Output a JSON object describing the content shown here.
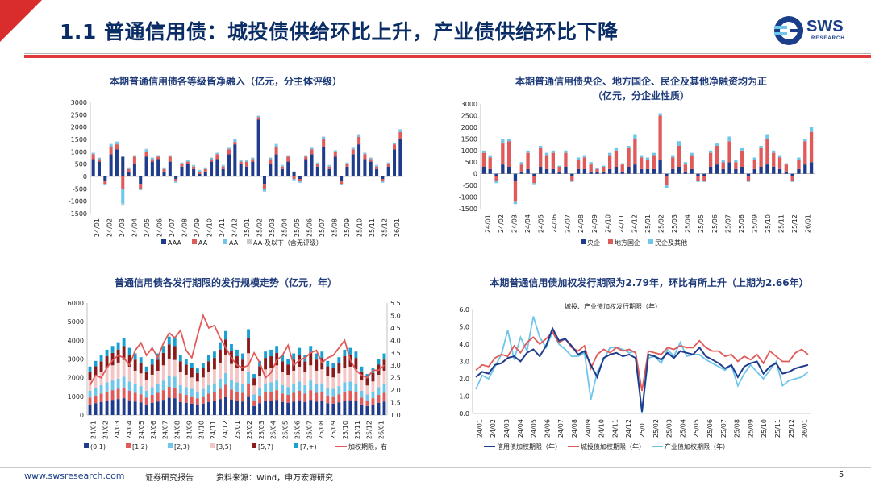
{
  "header": {
    "title": "1.1 普通信用债：城投债供给环比上升，产业债供给环比下降",
    "brand": "SWS",
    "brand_sub": "RESEARCH",
    "accent": "#d92c2c"
  },
  "footer": {
    "site": "www.swsresearch.com",
    "report": "证券研究报告",
    "source": "资料来源：Wind，申万宏源研究",
    "page": "5"
  },
  "chart_data": [
    {
      "type": "bar",
      "title": "本期普通信用债各等级皆净融入（亿元，分主体评级）",
      "yticks": [
        "3000",
        "2500",
        "2000",
        "1500",
        "1000",
        "500",
        "0",
        "-500",
        "-1000",
        "-1500"
      ],
      "ylim": [
        -1500,
        3000
      ],
      "xticks": [
        "24/01",
        "24/02",
        "24/03",
        "24/04",
        "24/05",
        "24/06",
        "24/07",
        "24/08",
        "24/09",
        "24/10",
        "24/11",
        "24/12",
        "25/01",
        "25/02",
        "25/03",
        "25/04",
        "25/05",
        "25/06",
        "25/07",
        "25/08",
        "25/09",
        "25/10",
        "25/11",
        "25/12",
        "26/01"
      ],
      "series": [
        {
          "name": "AAA",
          "color": "#1f3b8c"
        },
        {
          "name": "AA+",
          "color": "#e05a5a"
        },
        {
          "name": "AA",
          "color": "#6ec6ea"
        },
        {
          "name": "AA-及以下（含无评级）",
          "color": "#c9c9c9"
        }
      ],
      "values": {
        "AAA": [
          700,
          600,
          -200,
          900,
          1100,
          800,
          200,
          500,
          -300,
          800,
          600,
          700,
          200,
          600,
          -100,
          400,
          500,
          300,
          100,
          200,
          600,
          700,
          300,
          900,
          1300,
          500,
          400,
          600,
          2300,
          -300,
          500,
          900,
          300,
          600,
          200,
          -100,
          700,
          900,
          400,
          1200,
          300,
          800,
          -200,
          400,
          900,
          1300,
          700,
          600,
          300,
          -100,
          400,
          1100,
          1500
        ],
        "AA+": [
          200,
          100,
          -100,
          300,
          200,
          -500,
          100,
          300,
          -200,
          200,
          100,
          100,
          100,
          200,
          -100,
          100,
          100,
          100,
          100,
          100,
          100,
          200,
          100,
          200,
          100,
          100,
          200,
          100,
          100,
          -200,
          200,
          300,
          100,
          200,
          -100,
          -100,
          100,
          200,
          100,
          300,
          100,
          200,
          -100,
          100,
          200,
          300,
          200,
          100,
          100,
          -100,
          100,
          200,
          300
        ],
        "AA": [
          50,
          50,
          -50,
          100,
          100,
          -600,
          50,
          50,
          -50,
          100,
          50,
          50,
          50,
          50,
          -50,
          50,
          50,
          50,
          50,
          50,
          50,
          50,
          50,
          50,
          100,
          50,
          50,
          50,
          50,
          -100,
          50,
          100,
          50,
          50,
          -50,
          -50,
          50,
          50,
          50,
          100,
          50,
          50,
          -50,
          50,
          50,
          100,
          50,
          50,
          50,
          -50,
          50,
          50,
          100
        ],
        "AA-及以下（含无评级）": [
          20,
          20,
          -10,
          20,
          20,
          -50,
          20,
          20,
          -10,
          20,
          20,
          20,
          20,
          20,
          -10,
          20,
          20,
          20,
          20,
          20,
          20,
          20,
          20,
          20,
          20,
          20,
          20,
          20,
          20,
          -20,
          20,
          20,
          20,
          20,
          -10,
          -10,
          20,
          20,
          20,
          20,
          20,
          20,
          -10,
          20,
          20,
          20,
          20,
          20,
          20,
          -10,
          20,
          20,
          20
        ]
      }
    },
    {
      "type": "bar",
      "title": "本期普通信用债央企、地方国企、民企及其他净融资均为正",
      "title2": "（亿元，分企业性质）",
      "yticks": [
        "3000",
        "2500",
        "2000",
        "1500",
        "1000",
        "500",
        "0",
        "-500",
        "-1000",
        "-1500"
      ],
      "ylim": [
        -1500,
        3000
      ],
      "xticks": [
        "24/01",
        "24/02",
        "24/03",
        "24/04",
        "24/05",
        "24/06",
        "24/07",
        "24/08",
        "24/09",
        "24/10",
        "24/11",
        "24/12",
        "25/01",
        "25/02",
        "25/03",
        "25/04",
        "25/05",
        "25/06",
        "25/07",
        "25/08",
        "25/09",
        "25/10",
        "25/11",
        "25/12",
        "26/01"
      ],
      "series": [
        {
          "name": "央企",
          "color": "#1f3b8c"
        },
        {
          "name": "地方国企",
          "color": "#e05a5a"
        },
        {
          "name": "民企及其他",
          "color": "#6ec6ea"
        }
      ],
      "values": {
        "央企": [
          300,
          200,
          -100,
          400,
          300,
          -300,
          100,
          200,
          -100,
          300,
          200,
          200,
          100,
          300,
          -100,
          200,
          200,
          100,
          100,
          100,
          200,
          300,
          100,
          300,
          400,
          200,
          200,
          200,
          600,
          -100,
          200,
          300,
          100,
          200,
          -100,
          -100,
          300,
          400,
          200,
          500,
          200,
          300,
          -100,
          200,
          300,
          400,
          300,
          200,
          100,
          -100,
          200,
          400,
          500
        ],
        "地方国企": [
          600,
          500,
          -200,
          900,
          1100,
          -900,
          300,
          700,
          -300,
          800,
          600,
          700,
          200,
          600,
          -200,
          400,
          500,
          300,
          100,
          200,
          600,
          700,
          300,
          800,
          1100,
          500,
          400,
          600,
          1900,
          -400,
          500,
          900,
          300,
          600,
          -200,
          -200,
          600,
          800,
          300,
          900,
          300,
          700,
          -200,
          400,
          800,
          1100,
          600,
          500,
          300,
          -200,
          400,
          1000,
          1300
        ],
        "民企及其他": [
          100,
          100,
          -100,
          200,
          100,
          -100,
          100,
          100,
          -50,
          100,
          100,
          100,
          50,
          100,
          -50,
          100,
          100,
          100,
          50,
          50,
          100,
          100,
          50,
          100,
          200,
          100,
          100,
          100,
          100,
          -100,
          100,
          200,
          100,
          100,
          -50,
          -50,
          100,
          100,
          100,
          200,
          100,
          100,
          -50,
          100,
          100,
          200,
          100,
          100,
          50,
          -50,
          100,
          100,
          200
        ]
      }
    },
    {
      "type": "bar+line",
      "title": "普通信用债各发行期限的发行规模走势（亿元，年）",
      "yticks": [
        "6000",
        "5000",
        "4000",
        "3000",
        "2000",
        "1000",
        "0"
      ],
      "ylim": [
        0,
        6000
      ],
      "y2ticks": [
        "5.5",
        "5.0",
        "4.5",
        "4.0",
        "3.5",
        "3.0",
        "2.5",
        "2.0",
        "1.5",
        "1.0"
      ],
      "y2lim": [
        1.0,
        5.5
      ],
      "xticks": [
        "24/01",
        "24/02",
        "24/03",
        "24/04",
        "24/05",
        "24/06",
        "24/07",
        "24/08",
        "24/09",
        "24/10",
        "24/11",
        "24/12",
        "25/01",
        "25/02",
        "25/03",
        "25/04",
        "25/05",
        "25/06",
        "25/07",
        "25/08",
        "25/09",
        "25/10",
        "25/11",
        "25/12",
        "26/01"
      ],
      "series": [
        {
          "name": "(0,1)",
          "color": "#1f3b8c"
        },
        {
          "name": "[1,2)",
          "color": "#e05a5a"
        },
        {
          "name": "[2,3)",
          "color": "#6ec6ea"
        },
        {
          "name": "[3,5)",
          "color": "#f3c6c6"
        },
        {
          "name": "[5,7)",
          "color": "#8b1a1a"
        },
        {
          "name": "[7,+)",
          "color": "#19a0d0"
        },
        {
          "name": "加权期限，右",
          "color": "#e05a5a"
        }
      ],
      "totals": [
        2600,
        2900,
        3200,
        3500,
        3700,
        3900,
        4100,
        3600,
        3300,
        3100,
        2600,
        3000,
        3300,
        3700,
        4200,
        4100,
        3200,
        3000,
        2800,
        2500,
        2800,
        3200,
        3400,
        3900,
        4500,
        3800,
        3500,
        3300,
        4600,
        2200,
        2900,
        3400,
        3500,
        3700,
        3200,
        3000,
        3300,
        3600,
        3200,
        3700,
        3300,
        3400,
        2900,
        2800,
        3100,
        3500,
        3600,
        3400,
        2600,
        2200,
        2500,
        3000,
        3300
      ],
      "weighted_term": [
        2.2,
        2.6,
        2.5,
        2.9,
        3.2,
        3.4,
        3.3,
        3.0,
        3.6,
        3.9,
        3.4,
        3.7,
        3.3,
        3.9,
        4.3,
        4.1,
        4.4,
        3.6,
        3.3,
        4.2,
        5.0,
        4.5,
        4.6,
        4.1,
        3.7,
        3.3,
        3.0,
        2.9,
        3.0,
        3.5,
        3.1,
        2.5,
        2.7,
        3.2,
        3.4,
        3.8,
        3.0,
        3.2,
        3.3,
        3.5,
        3.6,
        3.1,
        3.3,
        3.4,
        3.7,
        4.0,
        3.2,
        2.8,
        2.6,
        2.5,
        2.8,
        2.8,
        3.0
      ]
    },
    {
      "type": "line",
      "title": "本期普通信用债加权发行期限为2.79年，环比有所上升（上期为2.66年）",
      "subtitle": "城投、产业债加权发行期限（年）",
      "yticks": [
        "6.0",
        "5.0",
        "4.0",
        "3.0",
        "2.0",
        "1.0",
        "0.0"
      ],
      "ylim": [
        0,
        6
      ],
      "xticks": [
        "24/01",
        "24/02",
        "24/03",
        "24/04",
        "24/05",
        "24/06",
        "24/07",
        "24/08",
        "24/09",
        "24/10",
        "24/11",
        "24/12",
        "25/01",
        "25/02",
        "25/03",
        "25/04",
        "25/05",
        "25/06",
        "25/07",
        "25/08",
        "25/09",
        "25/10",
        "25/11",
        "25/12",
        "26/01"
      ],
      "series": [
        {
          "name": "信用债加权期限（年）",
          "color": "#1f3b8c",
          "values": [
            2.1,
            2.4,
            2.3,
            2.8,
            2.9,
            3.2,
            3.3,
            3.0,
            3.5,
            3.7,
            3.3,
            3.9,
            4.9,
            4.2,
            4.3,
            3.9,
            3.4,
            3.6,
            2.8,
            2.1,
            3.2,
            3.4,
            3.5,
            3.3,
            3.4,
            3.2,
            0.1,
            3.4,
            3.3,
            3.1,
            3.5,
            3.2,
            3.6,
            3.5,
            3.4,
            3.8,
            3.3,
            3.1,
            2.9,
            2.6,
            2.8,
            2.1,
            2.7,
            2.9,
            3.0,
            2.3,
            2.7,
            2.9,
            2.3,
            2.4,
            2.6,
            2.7,
            2.8
          ]
        },
        {
          "name": "城投债加权期限（年）",
          "color": "#e05a5a",
          "values": [
            2.5,
            2.8,
            2.7,
            3.2,
            3.4,
            3.3,
            3.9,
            3.5,
            4.1,
            4.4,
            4.0,
            4.3,
            4.7,
            4.1,
            4.3,
            3.8,
            3.6,
            3.9,
            2.6,
            3.4,
            3.7,
            3.5,
            3.8,
            3.6,
            3.7,
            3.5,
            1.3,
            3.6,
            3.5,
            3.4,
            3.8,
            3.7,
            3.9,
            3.8,
            3.8,
            4.2,
            3.8,
            3.6,
            3.6,
            3.3,
            3.4,
            3.0,
            3.3,
            3.1,
            3.4,
            2.9,
            3.6,
            3.3,
            3.0,
            3.0,
            3.5,
            3.7,
            3.4
          ]
        },
        {
          "name": "产业债加权期限（年）",
          "color": "#6ec6ea",
          "values": [
            1.4,
            2.2,
            2.0,
            2.7,
            3.4,
            4.8,
            3.1,
            4.4,
            3.6,
            5.6,
            4.4,
            3.8,
            4.7,
            4.0,
            3.7,
            3.3,
            3.3,
            3.5,
            0.8,
            2.4,
            3.1,
            3.8,
            3.8,
            3.7,
            3.5,
            3.6,
            0.0,
            3.2,
            3.3,
            2.9,
            3.7,
            3.3,
            4.1,
            3.3,
            3.4,
            3.4,
            3.1,
            2.9,
            2.7,
            2.5,
            2.8,
            1.6,
            2.3,
            2.8,
            2.4,
            2.0,
            2.5,
            3.0,
            1.6,
            1.9,
            2.0,
            2.1,
            2.4
          ]
        }
      ]
    }
  ]
}
